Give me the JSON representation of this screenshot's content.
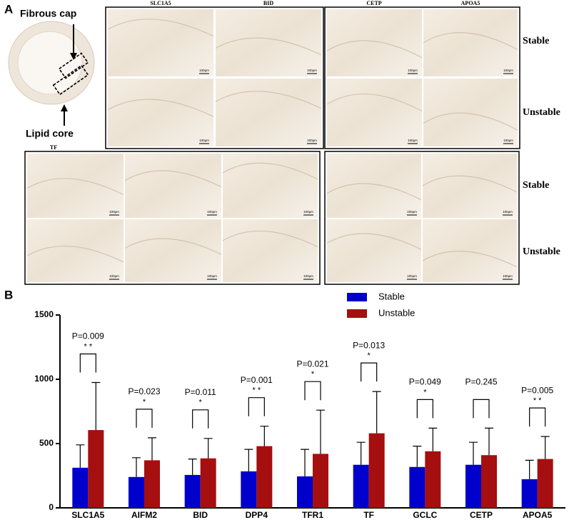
{
  "panel_a": {
    "label": "A",
    "fibrous_cap": "Fibrous cap",
    "lipid_core": "Lipid core",
    "top_labels": [
      "SLC1A5",
      "BID",
      "CETP",
      "APOA5"
    ],
    "bottom_label": "TF",
    "row_labels": [
      "Stable",
      "Unstable",
      "Stable",
      "Unstable"
    ],
    "scale_bar": "100μm"
  },
  "chart_data": {
    "type": "bar",
    "panel_label": "B",
    "categories": [
      "SLC1A5",
      "AIFM2",
      "BID",
      "DPP4",
      "TFR1",
      "TF",
      "GCLC",
      "CETP",
      "APOA5"
    ],
    "series": [
      {
        "name": "Stable",
        "color": "#0000cc",
        "values": [
          312,
          240,
          256,
          284,
          245,
          335,
          318,
          335,
          223
        ],
        "errors": [
          178,
          150,
          124,
          171,
          210,
          175,
          162,
          175,
          147
        ]
      },
      {
        "name": "Unstable",
        "color": "#a50f0f",
        "values": [
          605,
          370,
          385,
          480,
          420,
          580,
          440,
          410,
          380
        ],
        "errors": [
          370,
          175,
          155,
          155,
          340,
          325,
          180,
          210,
          175
        ]
      }
    ],
    "annotations": [
      {
        "p": "P=0.009",
        "stars": "* *"
      },
      {
        "p": "P=0.023",
        "stars": "*"
      },
      {
        "p": "P=0.011",
        "stars": "*"
      },
      {
        "p": "P=0.001",
        "stars": "* *"
      },
      {
        "p": "P=0.021",
        "stars": "*"
      },
      {
        "p": "P=0.013",
        "stars": "*"
      },
      {
        "p": "P=0.049",
        "stars": "*"
      },
      {
        "p": "P=0.245",
        "stars": ""
      },
      {
        "p": "P=0.005",
        "stars": "* *"
      }
    ],
    "ylim": [
      0,
      1500
    ],
    "yticks": [
      0,
      500,
      1000,
      1500
    ],
    "legend": "top"
  }
}
